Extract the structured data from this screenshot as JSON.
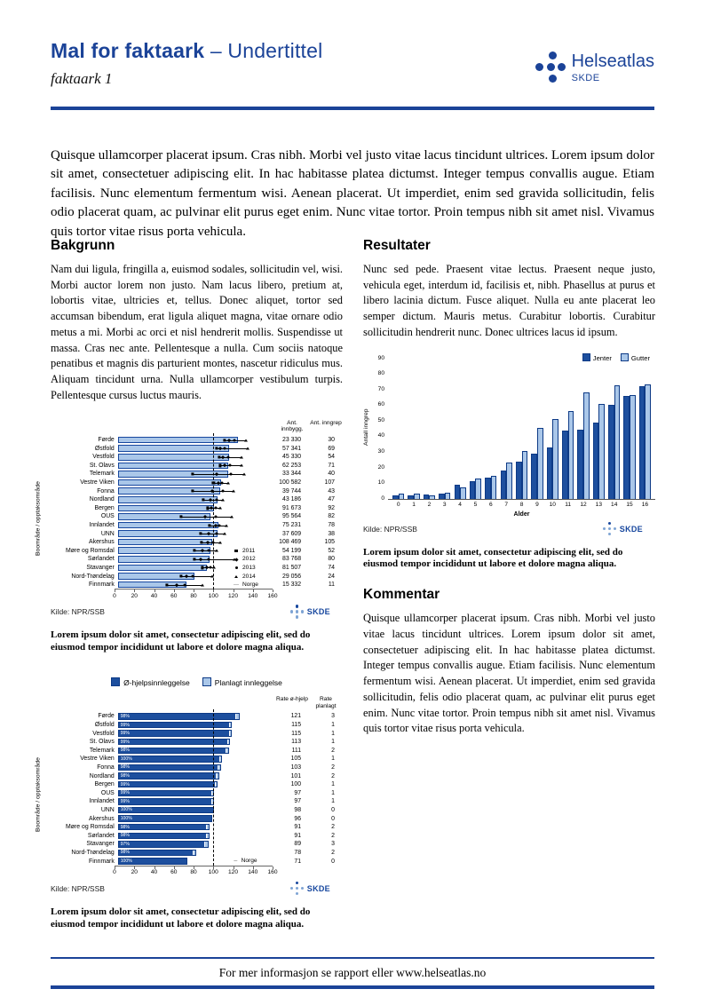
{
  "header": {
    "title": "Mal for faktaark",
    "subtitle": "– Undertittel",
    "sheet_label": "faktaark 1",
    "logo_brand": "Helseatlas",
    "logo_org": "SKDE"
  },
  "intro": "Quisque ullamcorper placerat ipsum. Cras nibh. Morbi vel justo vitae lacus tincidunt ultrices. Lorem ipsum dolor sit amet, consectetuer adipiscing elit. In hac habitasse platea dictumst. Integer tempus convallis augue. Etiam facilisis. Nunc elementum fermentum wisi. Aenean placerat. Ut imperdiet, enim sed gravida sollicitudin, felis odio placerat quam, ac pulvinar elit purus eget enim. Nunc vitae tortor. Proin tempus nibh sit amet nisl. Vivamus quis tortor vitae risus porta vehicula.",
  "sections": {
    "bakgrunn": {
      "heading": "Bakgrunn",
      "body": "Nam dui ligula, fringilla a, euismod sodales, sollicitudin vel, wisi. Morbi auctor lorem non justo. Nam lacus libero, pretium at, lobortis vitae, ultricies et, tellus. Donec aliquet, tortor sed accumsan bibendum, erat ligula aliquet magna, vitae ornare odio metus a mi. Morbi ac orci et nisl hendrerit mollis. Suspendisse ut massa. Cras nec ante. Pellentesque a nulla. Cum sociis natoque penatibus et magnis dis parturient montes, nascetur ridiculus mus. Aliquam tincidunt urna. Nulla ullamcorper vestibulum turpis. Pellentesque cursus luctus mauris."
    },
    "resultater": {
      "heading": "Resultater",
      "body": "Nunc sed pede. Praesent vitae lectus. Praesent neque justo, vehicula eget, interdum id, facilisis et, nibh. Phasellus at purus et libero lacinia dictum. Fusce aliquet. Nulla eu ante placerat leo semper dictum. Mauris metus. Curabitur lobortis. Curabitur sollicitudin hendrerit nunc. Donec ultrices lacus id ipsum."
    },
    "kommentar": {
      "heading": "Kommentar",
      "body": "Quisque ullamcorper placerat ipsum. Cras nibh. Morbi vel justo vitae lacus tincidunt ultrices. Lorem ipsum dolor sit amet, consectetuer adipiscing elit. In hac habitasse platea dictumst. Integer tempus convallis augue. Etiam facilisis. Nunc elementum fermentum wisi. Aenean placerat. Ut imperdiet, enim sed gravida sollicitudin, felis odio placerat quam, ac pulvinar elit purus eget enim. Nunc vitae tortor. Proin tempus nibh sit amet nisl. Vivamus quis tortor vitae risus porta vehicula."
    }
  },
  "caption": "Lorem ipsum dolor sit amet, consectetur adipiscing elit, sed do eiusmod tempor incididunt ut labore et dolore magna aliqua.",
  "footer": "For mer informasjon se rapport eller www.helseatlas.no",
  "colors": {
    "brand_blue": "#1b4398",
    "bar_dark": "#1d4f9e",
    "bar_light": "#aac7e9"
  },
  "chart_data": [
    {
      "type": "bar",
      "orientation": "horizontal",
      "ylabel": "Boområde / opptaksområde",
      "xlim": [
        0,
        160
      ],
      "xticks": [
        0,
        20,
        40,
        60,
        80,
        100,
        120,
        140,
        160
      ],
      "reference_line": {
        "label": "Norge",
        "value": 100
      },
      "legend": [
        {
          "label": "2011",
          "symbol": "square"
        },
        {
          "label": "2012",
          "symbol": "diamond"
        },
        {
          "label": "2013",
          "symbol": "circle"
        },
        {
          "label": "2014",
          "symbol": "triangle"
        },
        {
          "label": "Norge",
          "symbol": "dash"
        }
      ],
      "col_headers": [
        "Ant. innbygg.",
        "Ant. inngrep"
      ],
      "source": "Kilde: NPR/SSB",
      "rows": [
        {
          "label": "Førde",
          "bar": 122,
          "points": [
            108,
            113,
            118,
            130
          ],
          "innbygg": "23 330",
          "inngrep": "30"
        },
        {
          "label": "Østfold",
          "bar": 113,
          "points": [
            100,
            104,
            108,
            132
          ],
          "innbygg": "57 341",
          "inngrep": "69"
        },
        {
          "label": "Vestfold",
          "bar": 113,
          "points": [
            103,
            107,
            112,
            126
          ],
          "innbygg": "45 330",
          "inngrep": "54"
        },
        {
          "label": "St. Olavs",
          "bar": 112,
          "points": [
            104,
            108,
            114,
            126
          ],
          "innbygg": "62 253",
          "inngrep": "71"
        },
        {
          "label": "Telemark",
          "bar": 112,
          "points": [
            76,
            100,
            115,
            128
          ],
          "innbygg": "33 344",
          "inngrep": "40"
        },
        {
          "label": "Vestre Viken",
          "bar": 105,
          "points": [
            97,
            102,
            106,
            112
          ],
          "innbygg": "100 582",
          "inngrep": "107"
        },
        {
          "label": "Fonna",
          "bar": 104,
          "points": [
            76,
            96,
            107,
            117
          ],
          "innbygg": "39 744",
          "inngrep": "43"
        },
        {
          "label": "Nordland",
          "bar": 101,
          "points": [
            87,
            94,
            100,
            107
          ],
          "innbygg": "43 186",
          "inngrep": "47"
        },
        {
          "label": "Bergen",
          "bar": 98,
          "points": [
            91,
            95,
            99,
            104
          ],
          "innbygg": "91 673",
          "inngrep": "92"
        },
        {
          "label": "OUS",
          "bar": 94,
          "points": [
            64,
            89,
            99,
            116
          ],
          "innbygg": "95 564",
          "inngrep": "82"
        },
        {
          "label": "Innlandet",
          "bar": 102,
          "points": [
            93,
            99,
            103,
            110
          ],
          "innbygg": "75 231",
          "inngrep": "78"
        },
        {
          "label": "UNN",
          "bar": 101,
          "points": [
            84,
            92,
            100,
            108
          ],
          "innbygg": "37 609",
          "inngrep": "38"
        },
        {
          "label": "Akershus",
          "bar": 96,
          "points": [
            85,
            91,
            97,
            104
          ],
          "innbygg": "108 469",
          "inngrep": "105"
        },
        {
          "label": "Møre og Romsdal",
          "bar": 94,
          "points": [
            78,
            86,
            92,
            100
          ],
          "innbygg": "54 199",
          "inngrep": "52"
        },
        {
          "label": "Sørlandet",
          "bar": 93,
          "points": [
            78,
            84,
            92,
            118
          ],
          "innbygg": "83 768",
          "inngrep": "80"
        },
        {
          "label": "Stavanger",
          "bar": 90,
          "points": [
            86,
            90,
            94,
            98
          ],
          "innbygg": "81 507",
          "inngrep": "74"
        },
        {
          "label": "Nord-Trøndelag",
          "bar": 78,
          "points": [
            64,
            70,
            76,
            96
          ],
          "innbygg": "29 056",
          "inngrep": "24"
        },
        {
          "label": "Finnmark",
          "bar": 70,
          "points": [
            50,
            60,
            68,
            86
          ],
          "innbygg": "15 332",
          "inngrep": "11"
        }
      ]
    },
    {
      "type": "bar",
      "orientation": "vertical",
      "title": "",
      "xlabel": "Alder",
      "ylabel": "Antall inngrep",
      "ylim": [
        0,
        90
      ],
      "yticks": [
        0,
        10,
        20,
        30,
        40,
        50,
        60,
        70,
        80,
        90
      ],
      "categories": [
        "0",
        "1",
        "2",
        "3",
        "4",
        "5",
        "6",
        "7",
        "8",
        "9",
        "10",
        "11",
        "12",
        "13",
        "14",
        "15",
        "16"
      ],
      "series": [
        {
          "name": "Jenter",
          "values": [
            2,
            2,
            2.5,
            3.5,
            9,
            11,
            13.5,
            18,
            24,
            29,
            33,
            43.5,
            44,
            49,
            60,
            66,
            72
          ]
        },
        {
          "name": "Gutter",
          "values": [
            3,
            3,
            2,
            4,
            7,
            13,
            14.5,
            23,
            30.5,
            45.5,
            51,
            56,
            68,
            61,
            73,
            66.5,
            73.5
          ]
        }
      ],
      "legend_position": "top-right",
      "source": "Kilde: NPR/SSB"
    },
    {
      "type": "stacked-bar",
      "orientation": "horizontal",
      "ylabel": "Boområde / opptaksområde",
      "xlim": [
        0,
        160
      ],
      "xticks": [
        0,
        20,
        40,
        60,
        80,
        100,
        120,
        140,
        160
      ],
      "reference_line": {
        "label": "Norge",
        "value": 100
      },
      "legend": [
        "Ø-hjelpsinnleggelse",
        "Planlagt innleggelse"
      ],
      "col_headers": [
        "Rate ø-hjelp",
        "Rate planlagt"
      ],
      "source": "Kilde: NPR/SSB",
      "rows": [
        {
          "label": "Førde",
          "pct": "98%",
          "ohjelp": 121,
          "planlagt": 3
        },
        {
          "label": "Østfold",
          "pct": "99%",
          "ohjelp": 115,
          "planlagt": 1
        },
        {
          "label": "Vestfold",
          "pct": "99%",
          "ohjelp": 115,
          "planlagt": 1
        },
        {
          "label": "St. Olavs",
          "pct": "99%",
          "ohjelp": 113,
          "planlagt": 1
        },
        {
          "label": "Telemark",
          "pct": "98%",
          "ohjelp": 111,
          "planlagt": 2
        },
        {
          "label": "Vestre Viken",
          "pct": "100%",
          "ohjelp": 105,
          "planlagt": 1
        },
        {
          "label": "Fonna",
          "pct": "98%",
          "ohjelp": 103,
          "planlagt": 2
        },
        {
          "label": "Nordland",
          "pct": "98%",
          "ohjelp": 101,
          "planlagt": 2
        },
        {
          "label": "Bergen",
          "pct": "99%",
          "ohjelp": 100,
          "planlagt": 1
        },
        {
          "label": "OUS",
          "pct": "99%",
          "ohjelp": 97,
          "planlagt": 1
        },
        {
          "label": "Innlandet",
          "pct": "99%",
          "ohjelp": 97,
          "planlagt": 1
        },
        {
          "label": "UNN",
          "pct": "100%",
          "ohjelp": 98,
          "planlagt": 0
        },
        {
          "label": "Akershus",
          "pct": "100%",
          "ohjelp": 96,
          "planlagt": 0
        },
        {
          "label": "Møre og Romsdal",
          "pct": "98%",
          "ohjelp": 91,
          "planlagt": 2
        },
        {
          "label": "Sørlandet",
          "pct": "98%",
          "ohjelp": 91,
          "planlagt": 2
        },
        {
          "label": "Stavanger",
          "pct": "97%",
          "ohjelp": 89,
          "planlagt": 3
        },
        {
          "label": "Nord-Trøndelag",
          "pct": "98%",
          "ohjelp": 78,
          "planlagt": 2
        },
        {
          "label": "Finnmark",
          "pct": "100%",
          "ohjelp": 71,
          "planlagt": 0
        }
      ]
    }
  ]
}
